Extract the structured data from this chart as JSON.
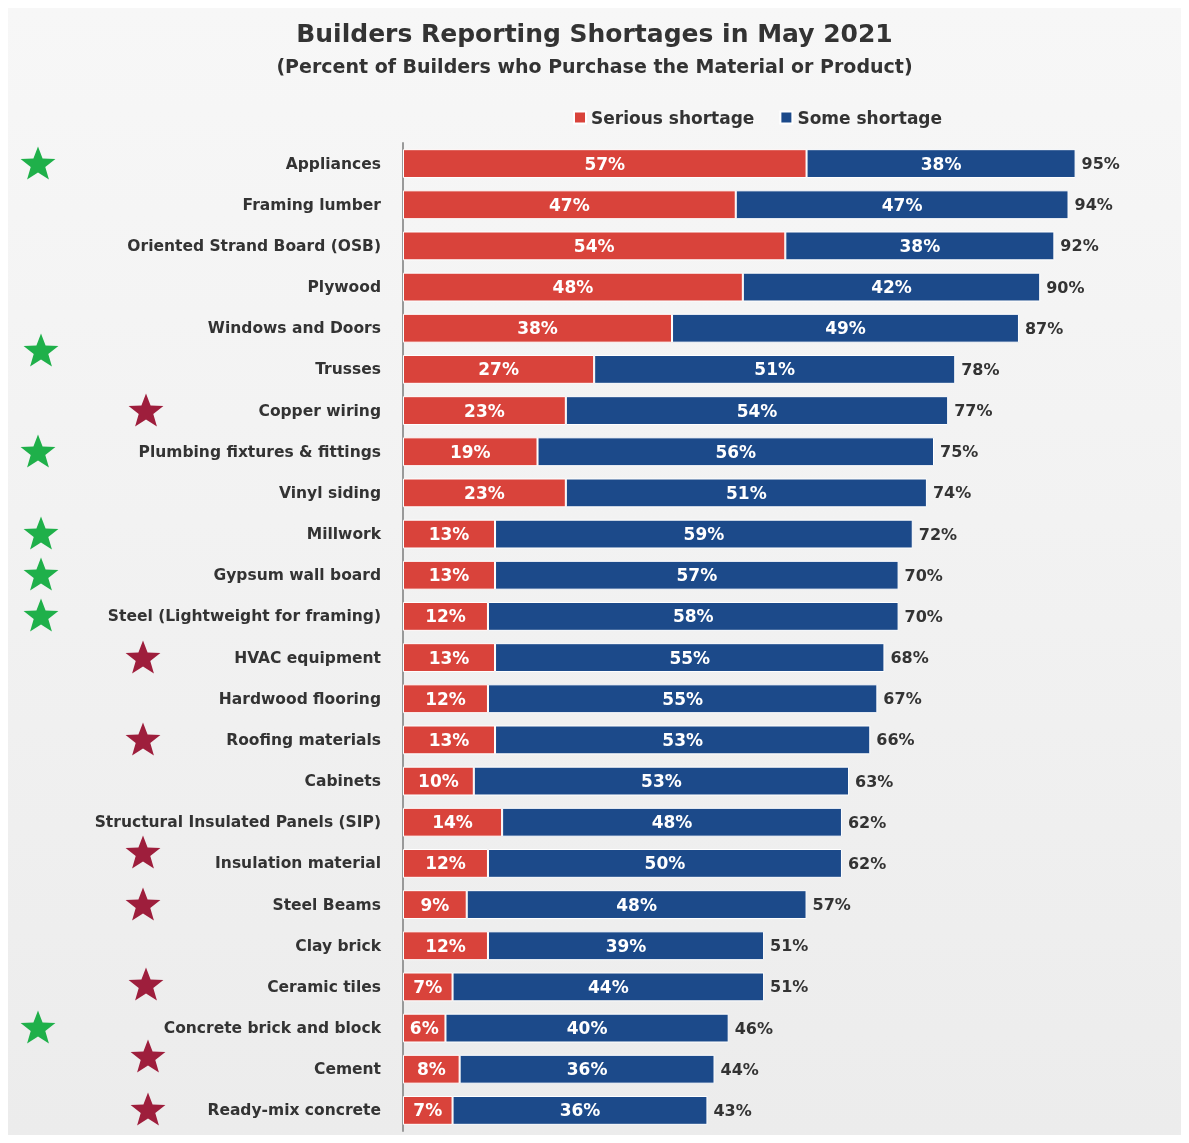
{
  "chart_data": {
    "type": "bar",
    "orientation": "horizontal",
    "stacked": true,
    "title": "Builders Reporting Shortages in May 2021",
    "subtitle": "(Percent of Builders who Purchase the Material or Product)",
    "categories": [
      "Appliances",
      "Framing lumber",
      "Oriented Strand Board (OSB)",
      "Plywood",
      "Windows and Doors",
      "Trusses",
      "Copper wiring",
      "Plumbing fixtures & fittings",
      "Vinyl siding",
      "Millwork",
      "Gypsum wall board",
      "Steel (Lightweight for framing)",
      "HVAC equipment",
      "Hardwood flooring",
      "Roofing materials",
      "Cabinets",
      "Structural Insulated Panels (SIP)",
      "Insulation material",
      "Steel Beams",
      "Clay brick",
      "Ceramic tiles",
      "Concrete brick and block",
      "Cement",
      "Ready-mix concrete"
    ],
    "series": [
      {
        "name": "Serious shortage",
        "color": "#d9433b",
        "values": [
          57,
          47,
          54,
          48,
          38,
          27,
          23,
          19,
          23,
          13,
          13,
          12,
          13,
          12,
          13,
          10,
          14,
          12,
          9,
          12,
          7,
          6,
          8,
          7
        ],
        "value_labels": [
          "57%",
          "47%",
          "54%",
          "48%",
          "38%",
          "27%",
          "23%",
          "19%",
          "23%",
          "13%",
          "13%",
          "12%",
          "13%",
          "12%",
          "13%",
          "10%",
          "14%",
          "12%",
          "9%",
          "12%",
          "7%",
          "6%",
          "8%",
          "7%"
        ]
      },
      {
        "name": "Some shortage",
        "color": "#1c4a8a",
        "values": [
          38,
          47,
          38,
          42,
          49,
          51,
          54,
          56,
          51,
          59,
          57,
          58,
          55,
          55,
          53,
          53,
          48,
          50,
          48,
          39,
          44,
          40,
          36,
          36
        ],
        "value_labels": [
          "38%",
          "47%",
          "38%",
          "42%",
          "49%",
          "51%",
          "54%",
          "56%",
          "51%",
          "59%",
          "57%",
          "58%",
          "55%",
          "55%",
          "53%",
          "53%",
          "48%",
          "50%",
          "48%",
          "39%",
          "44%",
          "40%",
          "36%",
          "36%"
        ]
      }
    ],
    "totals": [
      "95%",
      "94%",
      "92%",
      "90%",
      "87%",
      "78%",
      "77%",
      "75%",
      "74%",
      "72%",
      "70%",
      "70%",
      "68%",
      "67%",
      "66%",
      "63%",
      "62%",
      "62%",
      "57%",
      "51%",
      "51%",
      "46%",
      "44%",
      "43%"
    ],
    "legend": "top",
    "tick_labels": "y"
  }
}
